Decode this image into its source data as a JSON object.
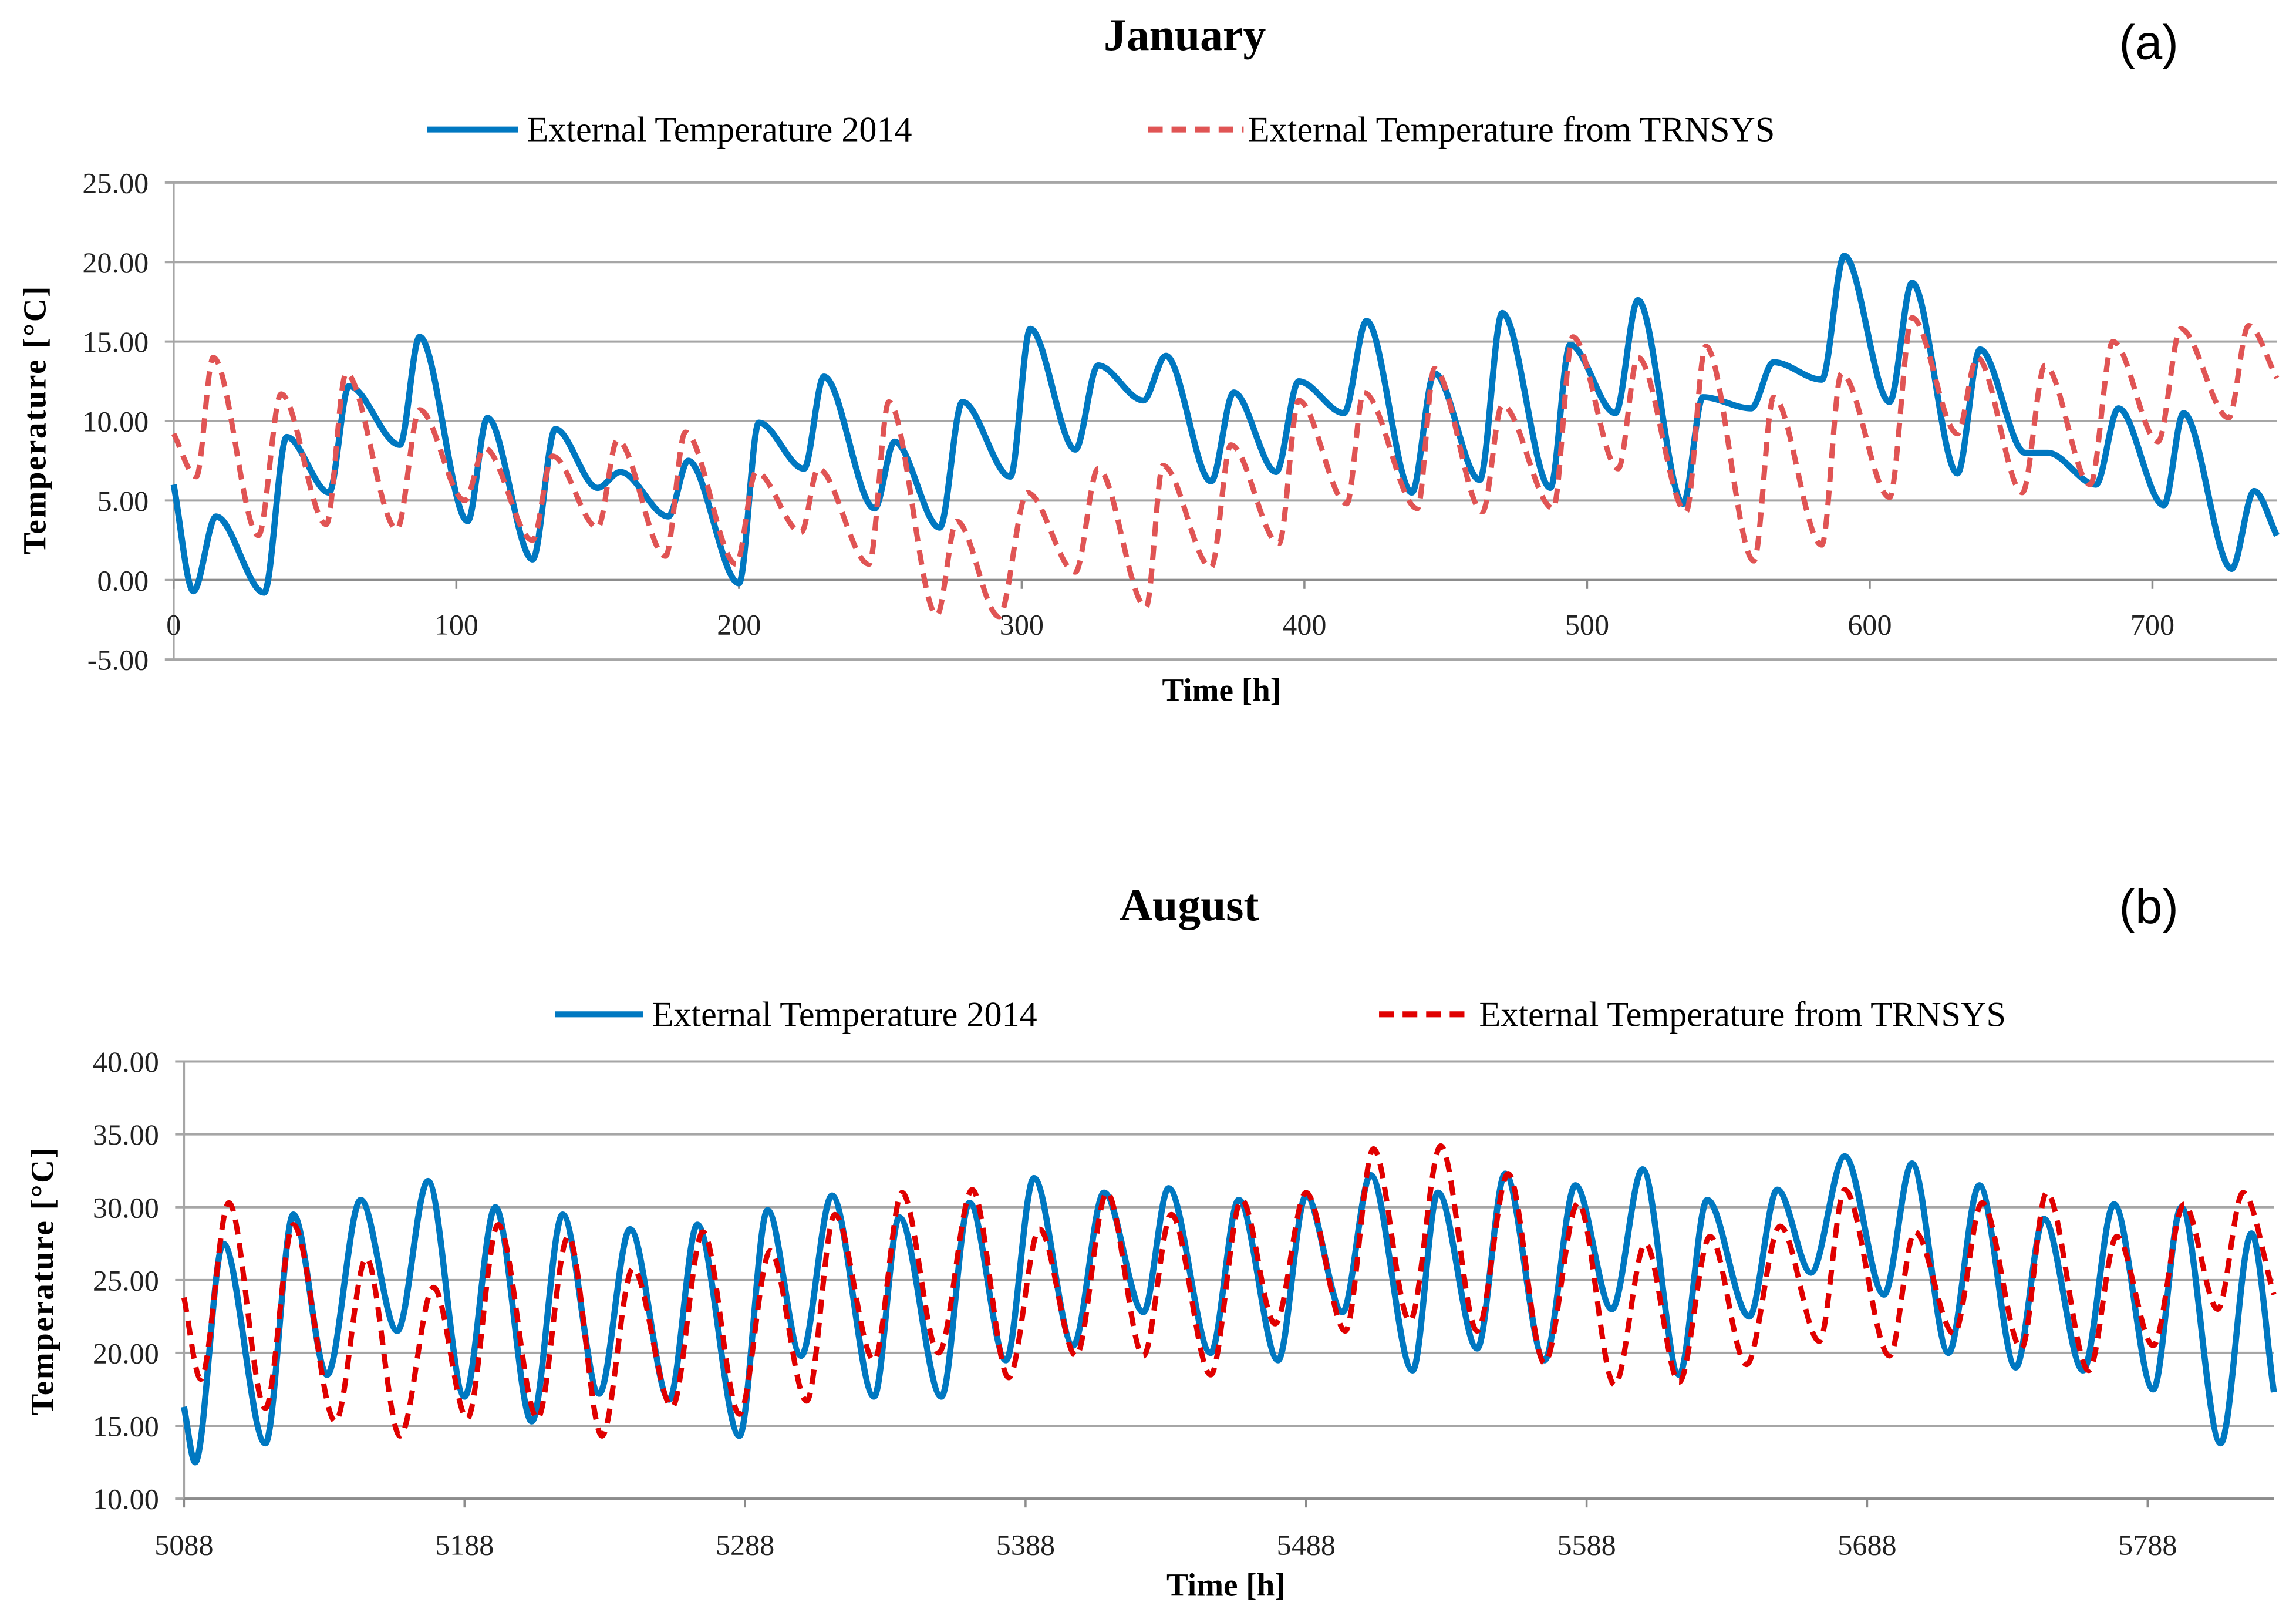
{
  "chart_data": [
    {
      "type": "line",
      "title": "January",
      "panel_label": "(a)",
      "xlabel": "Time [h]",
      "ylabel": "Temperature [°C]",
      "xlim": [
        0,
        744
      ],
      "ylim": [
        -5,
        25
      ],
      "xticks": [
        0,
        100,
        200,
        300,
        400,
        500,
        600,
        700
      ],
      "xtick_labels": [
        "0",
        "100",
        "200",
        "300",
        "400",
        "500",
        "600",
        "700"
      ],
      "yticks": [
        -5,
        0,
        5,
        10,
        15,
        20,
        25
      ],
      "ytick_labels": [
        "-5.00",
        "0.00",
        "5.00",
        "10.00",
        "15.00",
        "20.00",
        "25.00"
      ],
      "grid": "horizontal",
      "legend_position": "top",
      "series": [
        {
          "name": "External Temperature 2014",
          "color": "#0078C1",
          "style": "solid",
          "points": [
            [
              0,
              6
            ],
            [
              7,
              -0.7
            ],
            [
              15,
              4
            ],
            [
              32,
              -0.8
            ],
            [
              40,
              9
            ],
            [
              55,
              5.5
            ],
            [
              62,
              12.2
            ],
            [
              80,
              8.5
            ],
            [
              87,
              15.3
            ],
            [
              104,
              3.7
            ],
            [
              111,
              10.2
            ],
            [
              127,
              1.3
            ],
            [
              135,
              9.5
            ],
            [
              150,
              5.8
            ],
            [
              158,
              6.8
            ],
            [
              175,
              4
            ],
            [
              182,
              7.5
            ],
            [
              200,
              -0.2
            ],
            [
              207,
              9.9
            ],
            [
              223,
              7
            ],
            [
              230,
              12.8
            ],
            [
              248,
              4.5
            ],
            [
              255,
              8.7
            ],
            [
              271,
              3.3
            ],
            [
              279,
              11.2
            ],
            [
              296,
              6.5
            ],
            [
              303,
              15.8
            ],
            [
              319,
              8.2
            ],
            [
              327,
              13.5
            ],
            [
              343,
              11.3
            ],
            [
              351,
              14.1
            ],
            [
              367,
              6.2
            ],
            [
              375,
              11.8
            ],
            [
              390,
              6.8
            ],
            [
              398,
              12.5
            ],
            [
              414,
              10.5
            ],
            [
              422,
              16.3
            ],
            [
              438,
              5.5
            ],
            [
              446,
              13
            ],
            [
              462,
              6.3
            ],
            [
              470,
              16.8
            ],
            [
              487,
              5.8
            ],
            [
              494,
              14.8
            ],
            [
              510,
              10.5
            ],
            [
              518,
              17.6
            ],
            [
              534,
              4.8
            ],
            [
              541,
              11.5
            ],
            [
              558,
              10.8
            ],
            [
              566,
              13.7
            ],
            [
              583,
              12.6
            ],
            [
              591,
              20.4
            ],
            [
              607,
              11.2
            ],
            [
              615,
              18.7
            ],
            [
              631,
              6.7
            ],
            [
              639,
              14.5
            ],
            [
              655,
              8
            ],
            [
              663,
              8
            ],
            [
              680,
              6
            ],
            [
              688,
              10.8
            ],
            [
              704,
              4.7
            ],
            [
              711,
              10.5
            ],
            [
              728,
              0.7
            ],
            [
              736,
              5.6
            ],
            [
              744,
              2.8
            ]
          ]
        },
        {
          "name": "External Temperature from TRNSYS",
          "color": "#E05454",
          "style": "dashed",
          "points": [
            [
              0,
              9.2
            ],
            [
              8,
              6.5
            ],
            [
              14,
              14
            ],
            [
              30,
              2.8
            ],
            [
              38,
              11.7
            ],
            [
              54,
              3.5
            ],
            [
              61,
              13
            ],
            [
              79,
              3.2
            ],
            [
              87,
              10.7
            ],
            [
              103,
              5
            ],
            [
              110,
              8.3
            ],
            [
              127,
              2.5
            ],
            [
              134,
              7.8
            ],
            [
              150,
              3.3
            ],
            [
              157,
              8.8
            ],
            [
              174,
              1.5
            ],
            [
              181,
              9.3
            ],
            [
              199,
              1
            ],
            [
              206,
              6.8
            ],
            [
              222,
              3
            ],
            [
              228,
              7
            ],
            [
              246,
              1
            ],
            [
              253,
              11.2
            ],
            [
              270,
              -2.2
            ],
            [
              277,
              3.7
            ],
            [
              292,
              -2.3
            ],
            [
              302,
              5.5
            ],
            [
              319,
              0.5
            ],
            [
              327,
              7
            ],
            [
              344,
              -1.7
            ],
            [
              350,
              7.2
            ],
            [
              367,
              0.8
            ],
            [
              374,
              8.5
            ],
            [
              391,
              2.3
            ],
            [
              398,
              11.3
            ],
            [
              415,
              4.8
            ],
            [
              421,
              11.8
            ],
            [
              440,
              4.5
            ],
            [
              446,
              13.3
            ],
            [
              463,
              4.3
            ],
            [
              470,
              11
            ],
            [
              488,
              4.5
            ],
            [
              495,
              15.3
            ],
            [
              511,
              7
            ],
            [
              518,
              14
            ],
            [
              535,
              4.3
            ],
            [
              542,
              14.7
            ],
            [
              559,
              1.2
            ],
            [
              566,
              11.5
            ],
            [
              583,
              2.2
            ],
            [
              590,
              13
            ],
            [
              607,
              5.2
            ],
            [
              615,
              16.5
            ],
            [
              631,
              9.2
            ],
            [
              638,
              14
            ],
            [
              654,
              5.5
            ],
            [
              662,
              13.5
            ],
            [
              678,
              6
            ],
            [
              686,
              15
            ],
            [
              702,
              8.7
            ],
            [
              710,
              15.8
            ],
            [
              727,
              10.2
            ],
            [
              734,
              16
            ],
            [
              744,
              12.7
            ]
          ]
        }
      ]
    },
    {
      "type": "line",
      "title": "August",
      "panel_label": "(b)",
      "xlabel": "Time [h]",
      "ylabel": "Temperature [°C]",
      "xlim": [
        5088,
        5833
      ],
      "ylim": [
        10,
        40
      ],
      "xticks": [
        5088,
        5188,
        5288,
        5388,
        5488,
        5588,
        5688,
        5788
      ],
      "xtick_labels": [
        "5088",
        "5188",
        "5288",
        "5388",
        "5488",
        "5588",
        "5688",
        "5788"
      ],
      "yticks": [
        10,
        15,
        20,
        25,
        30,
        35,
        40
      ],
      "ytick_labels": [
        "10.00",
        "15.00",
        "20.00",
        "25.00",
        "30.00",
        "35.00",
        "40.00"
      ],
      "grid": "horizontal",
      "legend_position": "top",
      "series": [
        {
          "name": "External Temperature 2014",
          "color": "#0078C1",
          "style": "solid",
          "points": [
            [
              5088,
              16.3
            ],
            [
              5092,
              12.5
            ],
            [
              5102,
              27.5
            ],
            [
              5117,
              13.8
            ],
            [
              5127,
              29.5
            ],
            [
              5139,
              18.5
            ],
            [
              5151,
              30.5
            ],
            [
              5164,
              21.5
            ],
            [
              5175,
              31.8
            ],
            [
              5188,
              17
            ],
            [
              5199,
              30
            ],
            [
              5212,
              15.3
            ],
            [
              5223,
              29.5
            ],
            [
              5236,
              17.2
            ],
            [
              5247,
              28.5
            ],
            [
              5261,
              16.8
            ],
            [
              5271,
              28.8
            ],
            [
              5286,
              14.3
            ],
            [
              5296,
              29.8
            ],
            [
              5308,
              19.8
            ],
            [
              5319,
              30.8
            ],
            [
              5334,
              17
            ],
            [
              5343,
              29.3
            ],
            [
              5358,
              17
            ],
            [
              5368,
              30.3
            ],
            [
              5381,
              19.5
            ],
            [
              5391,
              32
            ],
            [
              5405,
              20.5
            ],
            [
              5416,
              31
            ],
            [
              5430,
              22.8
            ],
            [
              5439,
              31.3
            ],
            [
              5454,
              20
            ],
            [
              5464,
              30.5
            ],
            [
              5478,
              19.5
            ],
            [
              5488,
              30.8
            ],
            [
              5501,
              22.8
            ],
            [
              5511,
              32.2
            ],
            [
              5526,
              18.8
            ],
            [
              5535,
              31
            ],
            [
              5549,
              20.3
            ],
            [
              5559,
              32.3
            ],
            [
              5573,
              19.5
            ],
            [
              5584,
              31.5
            ],
            [
              5597,
              23
            ],
            [
              5608,
              32.6
            ],
            [
              5621,
              18.5
            ],
            [
              5631,
              30.5
            ],
            [
              5646,
              22.5
            ],
            [
              5656,
              31.2
            ],
            [
              5668,
              25.5
            ],
            [
              5680,
              33.5
            ],
            [
              5694,
              24
            ],
            [
              5704,
              33
            ],
            [
              5717,
              20
            ],
            [
              5728,
              31.5
            ],
            [
              5741,
              19
            ],
            [
              5751,
              29.2
            ],
            [
              5765,
              18.8
            ],
            [
              5776,
              30.2
            ],
            [
              5790,
              17.5
            ],
            [
              5800,
              30
            ],
            [
              5814,
              13.8
            ],
            [
              5825,
              28.2
            ],
            [
              5833,
              17.3
            ]
          ]
        },
        {
          "name": "External Temperature from TRNSYS",
          "color": "#E00000",
          "style": "dashed",
          "points": [
            [
              5088,
              23.8
            ],
            [
              5094,
              18.2
            ],
            [
              5104,
              30.3
            ],
            [
              5117,
              16.2
            ],
            [
              5127,
              28.8
            ],
            [
              5142,
              15.3
            ],
            [
              5153,
              26.5
            ],
            [
              5165,
              14.3
            ],
            [
              5177,
              24.5
            ],
            [
              5189,
              15.5
            ],
            [
              5200,
              28.8
            ],
            [
              5214,
              15.5
            ],
            [
              5225,
              28
            ],
            [
              5237,
              14.3
            ],
            [
              5248,
              25.8
            ],
            [
              5262,
              16.3
            ],
            [
              5273,
              28.3
            ],
            [
              5286,
              15.8
            ],
            [
              5297,
              27
            ],
            [
              5310,
              16.7
            ],
            [
              5320,
              29.5
            ],
            [
              5334,
              19.5
            ],
            [
              5344,
              31
            ],
            [
              5357,
              20
            ],
            [
              5369,
              31.2
            ],
            [
              5382,
              18.3
            ],
            [
              5393,
              28.5
            ],
            [
              5406,
              19.8
            ],
            [
              5417,
              31
            ],
            [
              5430,
              19.8
            ],
            [
              5440,
              29.5
            ],
            [
              5454,
              18.5
            ],
            [
              5465,
              30.5
            ],
            [
              5477,
              22
            ],
            [
              5488,
              31
            ],
            [
              5502,
              21.5
            ],
            [
              5512,
              34
            ],
            [
              5525,
              22.2
            ],
            [
              5536,
              34.2
            ],
            [
              5549,
              21.5
            ],
            [
              5560,
              32.3
            ],
            [
              5573,
              19.3
            ],
            [
              5585,
              30.3
            ],
            [
              5598,
              17.8
            ],
            [
              5609,
              27.5
            ],
            [
              5621,
              18
            ],
            [
              5632,
              28
            ],
            [
              5645,
              19.2
            ],
            [
              5657,
              28.7
            ],
            [
              5671,
              20.8
            ],
            [
              5680,
              31.2
            ],
            [
              5696,
              19.8
            ],
            [
              5705,
              28.3
            ],
            [
              5719,
              21.3
            ],
            [
              5729,
              30.3
            ],
            [
              5743,
              20.3
            ],
            [
              5752,
              31
            ],
            [
              5767,
              18.8
            ],
            [
              5777,
              28
            ],
            [
              5790,
              20.5
            ],
            [
              5801,
              30.2
            ],
            [
              5813,
              23
            ],
            [
              5822,
              31
            ],
            [
              5833,
              24
            ]
          ]
        }
      ]
    }
  ]
}
